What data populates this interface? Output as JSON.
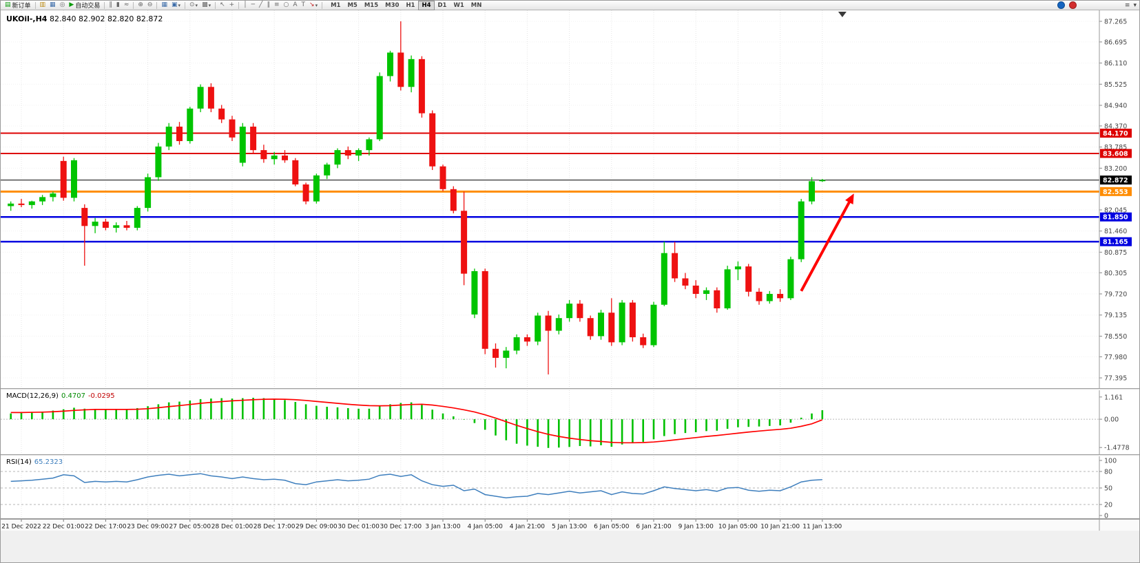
{
  "toolbar": {
    "new_order_label": "新订单",
    "autotrading_label": "自动交易",
    "timeframes": [
      "M1",
      "M5",
      "M15",
      "M30",
      "H1",
      "H4",
      "D1",
      "W1",
      "MN"
    ],
    "active_timeframe": "H4",
    "icons": {
      "new_order": "▤",
      "profiles": "▥",
      "charts": "▦",
      "alerts": "◎",
      "autotrading_play": "▶",
      "bar_chart": "‖",
      "candle_chart": "▮",
      "line_chart": "≈",
      "zoom_in": "⊕",
      "zoom_out": "⊖",
      "tile_windows": "▦",
      "new_chart": "▣",
      "periods": "⊙",
      "templates": "▩",
      "cursor": "↖",
      "crosshair": "+",
      "vline": "│",
      "hline": "─",
      "trendline": "╱",
      "channel": "∥",
      "fibonacci": "≡",
      "shapes": "○",
      "text_tool": "A",
      "label_tool": "T",
      "arrows_tool": "↘",
      "caret": "▾",
      "window_menu": "≡",
      "collapse": "▾"
    }
  },
  "chart": {
    "symbol": "UKOil-,H4",
    "ohlc": "82.840 82.902 82.820 82.872",
    "macd_label": "MACD(12,26,9)",
    "macd_main_value": "0.4707",
    "macd_signal_value": "-0.0295",
    "rsi_label": "RSI(14)",
    "rsi_value": "65.2323"
  },
  "chart_data": {
    "type": "candlestick",
    "symbol": "UKOil-",
    "timeframe": "H4",
    "current_ohlc": {
      "open": 82.84,
      "high": 82.902,
      "low": 82.82,
      "close": 82.872
    },
    "main_range": [
      77.11,
      87.57
    ],
    "price_ticks": [
      "87.265",
      "86.695",
      "86.110",
      "85.525",
      "84.940",
      "84.370",
      "83.785",
      "83.200",
      "82.045",
      "81.460",
      "80.875",
      "80.305",
      "79.720",
      "79.135",
      "78.550",
      "77.980",
      "77.395"
    ],
    "hlines": [
      {
        "price": 84.17,
        "label": "84.170",
        "color": "#dd0000",
        "width": 2
      },
      {
        "price": 83.608,
        "label": "83.608",
        "color": "#dd0000",
        "width": 2
      },
      {
        "price": 82.872,
        "label": "82.872",
        "color": "#000000",
        "width": 1
      },
      {
        "price": 82.553,
        "label": "82.553",
        "color": "#ff8c00",
        "width": 3
      },
      {
        "price": 81.85,
        "label": "81.850",
        "color": "#0000e0",
        "width": 2.5
      },
      {
        "price": 81.165,
        "label": "81.165",
        "color": "#0000e0",
        "width": 2.5
      }
    ],
    "colors": {
      "up": "#00c400",
      "down": "#ee1111",
      "macd_hist": "#00c000",
      "macd_signal": "#ff0000",
      "rsi_line": "#3d7ebd",
      "arrow": "#ff0000"
    },
    "time_labels": [
      "21 Dec 2022",
      "22 Dec 01:00",
      "22 Dec 17:00",
      "23 Dec 09:00",
      "27 Dec 05:00",
      "28 Dec 01:00",
      "28 Dec 17:00",
      "29 Dec 09:00",
      "30 Dec 01:00",
      "30 Dec 17:00",
      "3 Jan 13:00",
      "4 Jan 05:00",
      "4 Jan 21:00",
      "5 Jan 13:00",
      "6 Jan 05:00",
      "6 Jan 21:00",
      "9 Jan 13:00",
      "10 Jan 05:00",
      "10 Jan 21:00",
      "11 Jan 13:00"
    ],
    "ohlc": [
      [
        82.15,
        82.28,
        82.02,
        82.22
      ],
      [
        82.22,
        82.35,
        82.12,
        82.18
      ],
      [
        82.18,
        82.3,
        82.08,
        82.28
      ],
      [
        82.28,
        82.46,
        82.18,
        82.4
      ],
      [
        82.4,
        82.55,
        82.28,
        82.5
      ],
      [
        83.4,
        83.52,
        82.3,
        82.38
      ],
      [
        82.38,
        83.48,
        82.28,
        83.42
      ],
      [
        82.1,
        82.2,
        80.5,
        81.6
      ],
      [
        81.6,
        81.82,
        81.4,
        81.72
      ],
      [
        81.72,
        81.8,
        81.48,
        81.55
      ],
      [
        81.55,
        81.7,
        81.42,
        81.62
      ],
      [
        81.62,
        81.74,
        81.48,
        81.55
      ],
      [
        81.55,
        82.15,
        81.48,
        82.1
      ],
      [
        82.1,
        83.05,
        82.0,
        82.95
      ],
      [
        82.95,
        83.9,
        82.85,
        83.8
      ],
      [
        83.8,
        84.45,
        83.7,
        84.35
      ],
      [
        84.35,
        84.48,
        83.85,
        83.95
      ],
      [
        83.95,
        84.9,
        83.88,
        84.85
      ],
      [
        84.85,
        85.52,
        84.75,
        85.45
      ],
      [
        85.45,
        85.55,
        84.75,
        84.85
      ],
      [
        84.85,
        84.95,
        84.45,
        84.55
      ],
      [
        84.55,
        84.65,
        83.95,
        84.05
      ],
      [
        83.35,
        84.45,
        83.25,
        84.35
      ],
      [
        84.35,
        84.45,
        83.6,
        83.7
      ],
      [
        83.7,
        83.85,
        83.35,
        83.45
      ],
      [
        83.45,
        83.65,
        83.3,
        83.55
      ],
      [
        83.55,
        83.7,
        83.35,
        83.42
      ],
      [
        83.42,
        83.48,
        82.7,
        82.75
      ],
      [
        82.75,
        82.8,
        82.2,
        82.28
      ],
      [
        82.28,
        83.05,
        82.22,
        83.0
      ],
      [
        83.0,
        83.35,
        82.9,
        83.3
      ],
      [
        83.3,
        83.75,
        83.2,
        83.7
      ],
      [
        83.7,
        83.8,
        83.45,
        83.55
      ],
      [
        83.55,
        83.75,
        83.4,
        83.7
      ],
      [
        83.7,
        84.05,
        83.55,
        84.0
      ],
      [
        84.0,
        85.85,
        83.95,
        85.75
      ],
      [
        85.75,
        86.45,
        85.6,
        86.4
      ],
      [
        86.4,
        87.265,
        85.35,
        85.45
      ],
      [
        85.45,
        86.32,
        85.3,
        86.22
      ],
      [
        86.22,
        86.3,
        84.6,
        84.72
      ],
      [
        84.72,
        84.8,
        83.15,
        83.25
      ],
      [
        83.25,
        83.3,
        82.56,
        82.62
      ],
      [
        82.62,
        82.7,
        81.95,
        82.02
      ],
      [
        82.02,
        82.55,
        79.96,
        80.28
      ],
      [
        79.15,
        80.42,
        79.05,
        80.35
      ],
      [
        80.35,
        80.42,
        78.05,
        78.2
      ],
      [
        78.2,
        78.35,
        77.68,
        77.95
      ],
      [
        77.95,
        78.25,
        77.66,
        78.15
      ],
      [
        78.15,
        78.6,
        78.05,
        78.52
      ],
      [
        78.52,
        78.6,
        78.28,
        78.4
      ],
      [
        78.4,
        79.2,
        78.3,
        79.12
      ],
      [
        79.12,
        79.25,
        77.49,
        78.7
      ],
      [
        78.7,
        79.15,
        78.6,
        79.05
      ],
      [
        79.05,
        79.55,
        78.95,
        79.45
      ],
      [
        79.45,
        79.55,
        78.95,
        79.05
      ],
      [
        79.05,
        79.12,
        78.45,
        78.55
      ],
      [
        78.55,
        79.28,
        78.45,
        79.2
      ],
      [
        79.2,
        79.6,
        78.28,
        78.38
      ],
      [
        78.38,
        79.55,
        78.3,
        79.48
      ],
      [
        79.48,
        79.55,
        78.4,
        78.52
      ],
      [
        78.52,
        78.62,
        78.22,
        78.3
      ],
      [
        78.3,
        79.5,
        78.25,
        79.42
      ],
      [
        79.42,
        81.17,
        79.38,
        80.85
      ],
      [
        80.85,
        81.16,
        80.05,
        80.15
      ],
      [
        80.15,
        80.3,
        79.85,
        79.95
      ],
      [
        79.95,
        80.1,
        79.6,
        79.72
      ],
      [
        79.72,
        79.9,
        79.55,
        79.82
      ],
      [
        79.82,
        79.9,
        79.2,
        79.32
      ],
      [
        79.32,
        80.5,
        79.28,
        80.4
      ],
      [
        80.4,
        80.62,
        80.1,
        80.48
      ],
      [
        80.48,
        80.55,
        79.65,
        79.78
      ],
      [
        79.78,
        79.88,
        79.42,
        79.52
      ],
      [
        79.52,
        79.8,
        79.45,
        79.72
      ],
      [
        79.72,
        79.85,
        79.5,
        79.6
      ],
      [
        79.6,
        80.75,
        79.55,
        80.68
      ],
      [
        80.68,
        82.35,
        80.6,
        82.28
      ],
      [
        82.28,
        82.95,
        82.2,
        82.84
      ],
      [
        82.84,
        82.902,
        82.82,
        82.872
      ]
    ],
    "macd": {
      "range": [
        -1.83,
        1.513
      ],
      "axis": [
        {
          "label": "1.161",
          "value": 1.161
        },
        {
          "label": "0.00",
          "value": 0
        },
        {
          "label": "-1.4778",
          "value": -1.4778
        }
      ],
      "histogram": [
        0.3,
        0.33,
        0.36,
        0.4,
        0.45,
        0.52,
        0.6,
        0.55,
        0.52,
        0.5,
        0.5,
        0.52,
        0.58,
        0.68,
        0.78,
        0.88,
        0.92,
        0.98,
        1.05,
        1.08,
        1.1,
        1.08,
        1.1,
        1.12,
        1.1,
        1.05,
        1.0,
        0.9,
        0.78,
        0.7,
        0.65,
        0.62,
        0.58,
        0.55,
        0.55,
        0.68,
        0.78,
        0.85,
        0.88,
        0.75,
        0.5,
        0.3,
        0.15,
        -0.02,
        -0.2,
        -0.55,
        -0.85,
        -1.1,
        -1.28,
        -1.38,
        -1.44,
        -1.5,
        -1.48,
        -1.45,
        -1.4,
        -1.42,
        -1.36,
        -1.44,
        -1.32,
        -1.25,
        -1.18,
        -1.05,
        -0.88,
        -0.78,
        -0.72,
        -0.68,
        -0.62,
        -0.6,
        -0.5,
        -0.42,
        -0.4,
        -0.38,
        -0.35,
        -0.32,
        -0.18,
        0.08,
        0.3,
        0.4707
      ],
      "signal": [
        0.35,
        0.35,
        0.36,
        0.37,
        0.39,
        0.42,
        0.46,
        0.49,
        0.51,
        0.51,
        0.51,
        0.51,
        0.52,
        0.55,
        0.6,
        0.66,
        0.71,
        0.77,
        0.83,
        0.88,
        0.92,
        0.96,
        0.99,
        1.02,
        1.04,
        1.05,
        1.04,
        1.02,
        0.98,
        0.93,
        0.88,
        0.83,
        0.78,
        0.74,
        0.71,
        0.7,
        0.71,
        0.74,
        0.77,
        0.78,
        0.74,
        0.67,
        0.59,
        0.49,
        0.38,
        0.23,
        0.06,
        -0.13,
        -0.32,
        -0.49,
        -0.65,
        -0.79,
        -0.9,
        -0.99,
        -1.06,
        -1.12,
        -1.16,
        -1.21,
        -1.23,
        -1.23,
        -1.22,
        -1.19,
        -1.14,
        -1.08,
        -1.02,
        -0.96,
        -0.9,
        -0.85,
        -0.79,
        -0.73,
        -0.67,
        -0.62,
        -0.57,
        -0.53,
        -0.47,
        -0.37,
        -0.24,
        -0.03
      ]
    },
    "rsi": {
      "range": [
        -5,
        107.5
      ],
      "axis": [
        {
          "label": "100",
          "value": 100
        },
        {
          "label": "80",
          "value": 80
        },
        {
          "label": "50",
          "value": 50
        },
        {
          "label": "20",
          "value": 20
        },
        {
          "label": "0",
          "value": 0
        }
      ],
      "levels": [
        80,
        50,
        20
      ],
      "values": [
        62,
        63,
        64,
        66,
        68,
        74,
        72,
        60,
        62,
        61,
        62,
        61,
        65,
        70,
        73,
        75,
        72,
        74,
        76,
        72,
        70,
        67,
        70,
        67,
        65,
        66,
        64,
        58,
        56,
        61,
        63,
        65,
        63,
        64,
        66,
        73,
        75,
        71,
        74,
        63,
        56,
        53,
        55,
        45,
        48,
        38,
        35,
        32,
        34,
        35,
        40,
        38,
        41,
        44,
        41,
        43,
        45,
        38,
        43,
        40,
        39,
        45,
        52,
        49,
        47,
        45,
        47,
        44,
        50,
        51,
        46,
        44,
        46,
        45,
        52,
        61,
        64,
        65.23
      ]
    },
    "arrow": {
      "from_index": 75.0,
      "from_price": 79.8,
      "to_index": 80.0,
      "to_price": 82.5,
      "color": "#ff0000"
    },
    "shift_marker_index": 78.9
  }
}
